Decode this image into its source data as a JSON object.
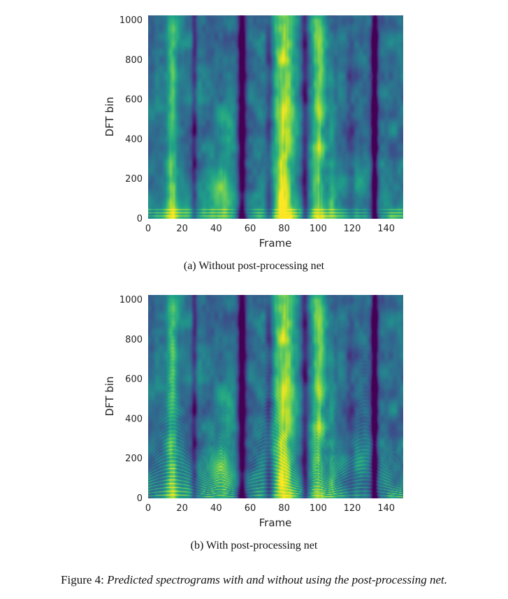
{
  "figure": {
    "label": "Figure 4:",
    "caption": "Predicted spectrograms with and without using the post-processing net."
  },
  "panels": [
    {
      "subcaption": "(a)  Without post-processing net"
    },
    {
      "subcaption": "(b)  With post-processing net"
    }
  ],
  "chart_data": [
    {
      "type": "heatmap",
      "title": "",
      "xlabel": "Frame",
      "ylabel": "DFT bin",
      "xlim": [
        0,
        150
      ],
      "ylim": [
        0,
        1025
      ],
      "xticks": [
        "0",
        "20",
        "40",
        "60",
        "80",
        "100",
        "120",
        "140"
      ],
      "yticks": [
        "0",
        "200",
        "400",
        "600",
        "800",
        "1000"
      ],
      "colormap": "viridis",
      "harmonics": false
    },
    {
      "type": "heatmap",
      "title": "",
      "xlabel": "Frame",
      "ylabel": "DFT bin",
      "xlim": [
        0,
        150
      ],
      "ylim": [
        0,
        1025
      ],
      "xticks": [
        "0",
        "20",
        "40",
        "60",
        "80",
        "100",
        "120",
        "140"
      ],
      "yticks": [
        "0",
        "200",
        "400",
        "600",
        "800",
        "1000"
      ],
      "colormap": "viridis",
      "harmonics": true
    }
  ]
}
